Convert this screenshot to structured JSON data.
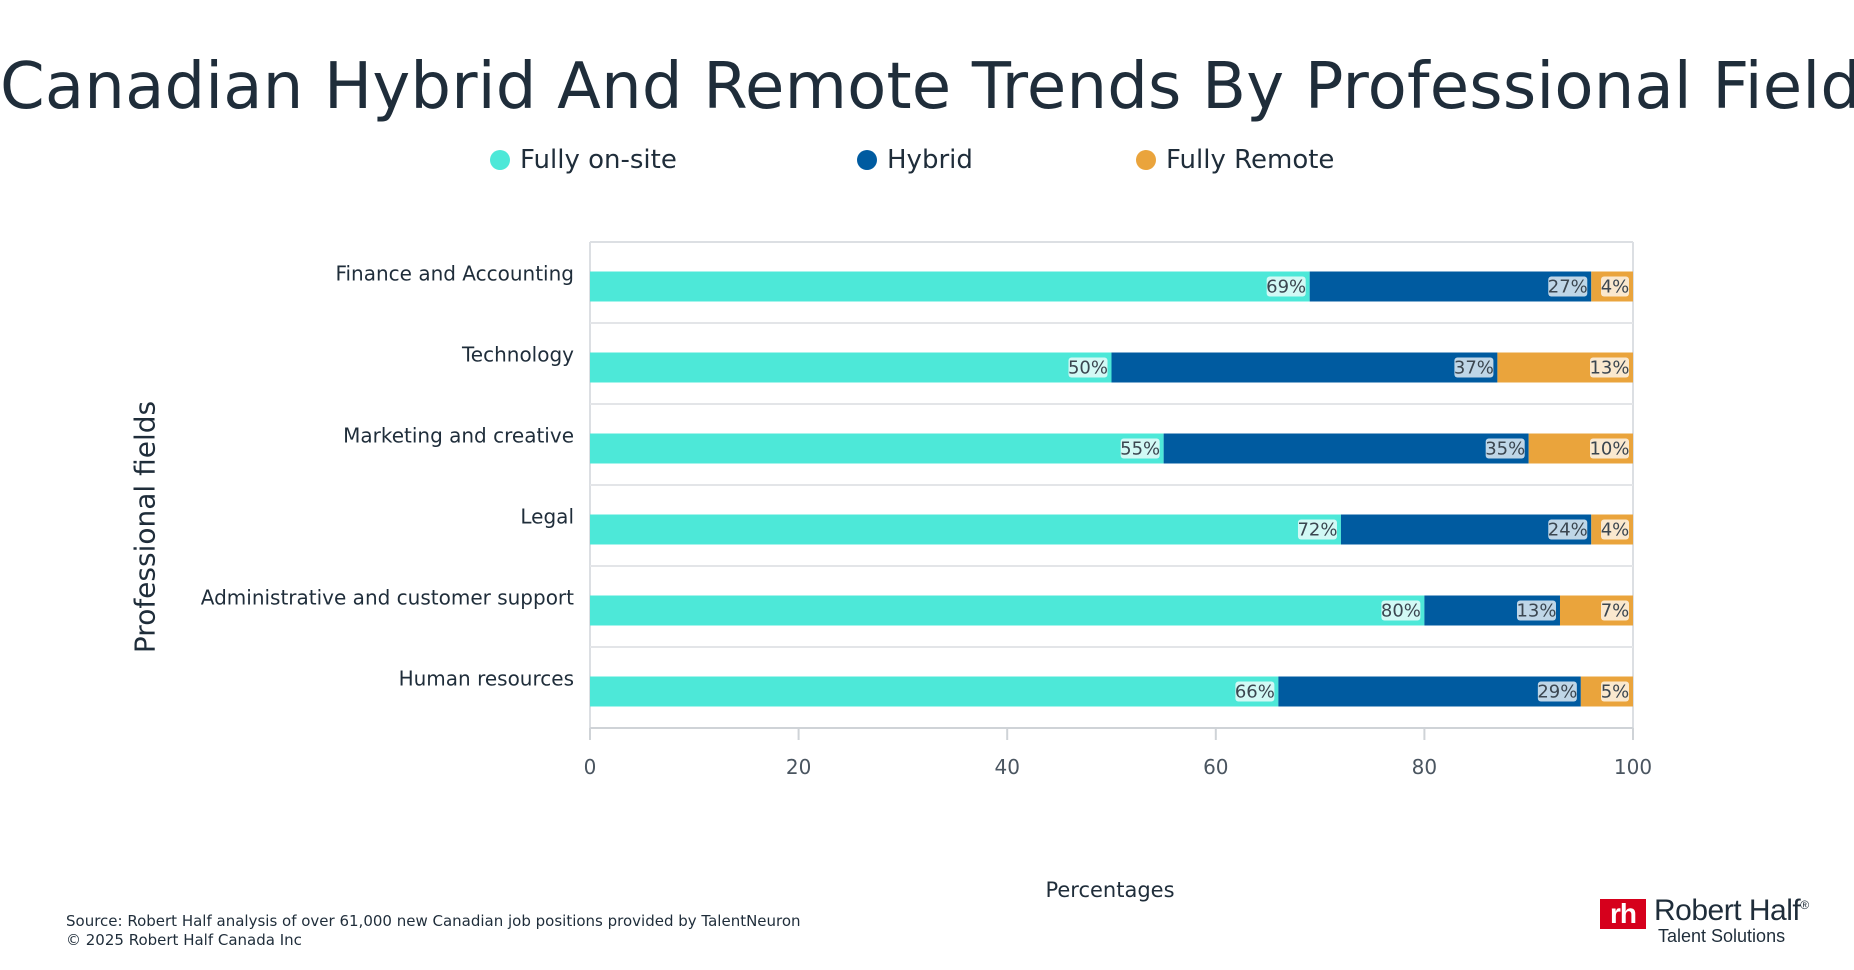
{
  "title": "Canadian Hybrid And Remote Trends By Professional Field",
  "legend": [
    {
      "label": "Fully on-site",
      "color": "#4de8d8"
    },
    {
      "label": "Hybrid",
      "color": "#005ba0"
    },
    {
      "label": "Fully Remote",
      "color": "#eaa43c"
    }
  ],
  "footer": {
    "source": "Source: Robert Half analysis of over 61,000 new Canadian job positions provided by TalentNeuron",
    "copyright": "© 2025 Robert Half Canada Inc"
  },
  "logo": {
    "mark": "rh",
    "name": "Robert Half",
    "registered": "®",
    "tagline": "Talent Solutions"
  },
  "chart_data": {
    "type": "bar",
    "orientation": "horizontal",
    "stacked": true,
    "title": "Canadian Hybrid And Remote Trends By Professional Field",
    "xlabel": "Percentages",
    "ylabel": "Professional fields",
    "xlim": [
      0,
      100
    ],
    "xticks": [
      "0",
      "20",
      "40",
      "60",
      "80",
      "100"
    ],
    "categories": [
      "Finance and Accounting",
      "Technology",
      "Marketing and creative",
      "Legal",
      "Administrative and customer support",
      "Human resources"
    ],
    "series": [
      {
        "name": "Fully on-site",
        "color": "#4de8d8",
        "values": [
          69,
          50,
          55,
          72,
          80,
          66
        ],
        "labels": [
          "69%",
          "50%",
          "55%",
          "72%",
          "80%",
          "66%"
        ]
      },
      {
        "name": "Hybrid",
        "color": "#005ba0",
        "values": [
          27,
          37,
          35,
          24,
          13,
          29
        ],
        "labels": [
          "27%",
          "37%",
          "35%",
          "24%",
          "13%",
          "29%"
        ]
      },
      {
        "name": "Fully Remote",
        "color": "#eaa43c",
        "values": [
          4,
          13,
          10,
          4,
          7,
          5
        ],
        "labels": [
          "4%",
          "13%",
          "10%",
          "4%",
          "7%",
          "5%"
        ]
      }
    ],
    "legend_position": "top",
    "grid": true
  }
}
